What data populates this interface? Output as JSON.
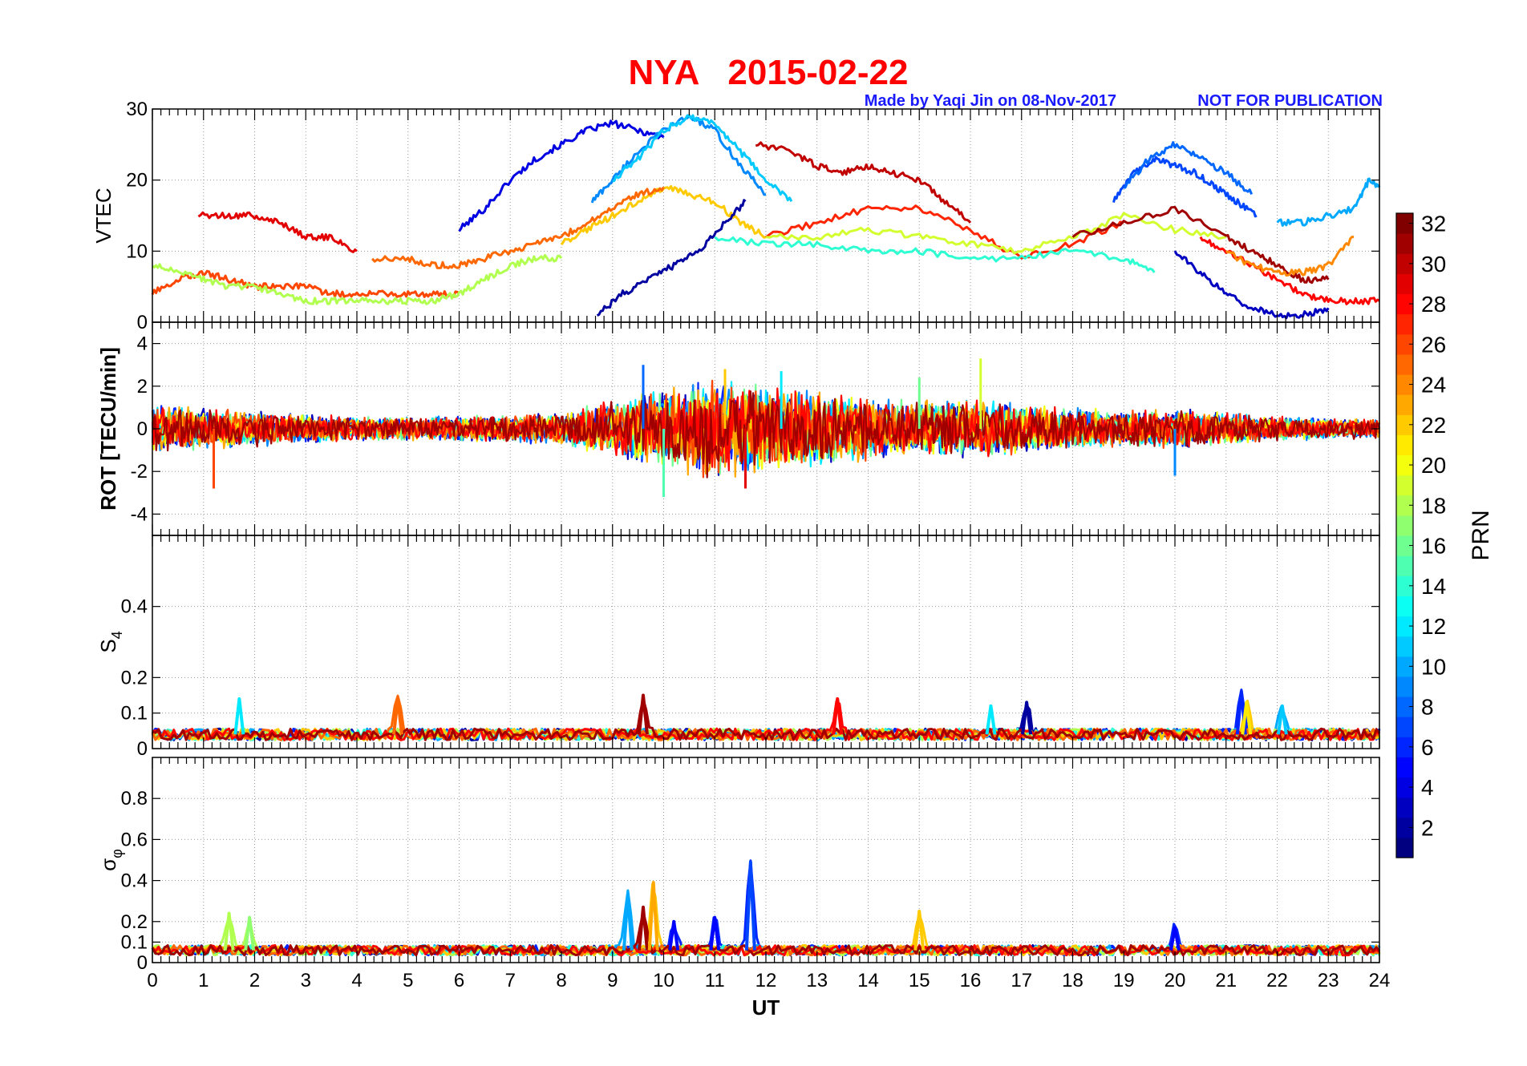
{
  "chart_data": {
    "type": "line",
    "title": "NYA   2015-02-22",
    "credit": "Made by Yaqi Jin on 08-Nov-2017",
    "notice": "NOT FOR PUBLICATION",
    "xlabel": "UT",
    "xlim": [
      0,
      24
    ],
    "xticks": [
      "0",
      "1",
      "2",
      "3",
      "4",
      "5",
      "6",
      "7",
      "8",
      "9",
      "10",
      "11",
      "12",
      "13",
      "14",
      "15",
      "16",
      "17",
      "18",
      "19",
      "20",
      "21",
      "22",
      "23",
      "24"
    ],
    "grid": true,
    "colorbar": {
      "label": "PRN",
      "range": [
        1,
        32
      ],
      "ticks": [
        "2",
        "4",
        "6",
        "8",
        "10",
        "12",
        "14",
        "16",
        "18",
        "20",
        "22",
        "24",
        "26",
        "28",
        "30",
        "32"
      ],
      "colormap": "jet"
    },
    "panels": [
      {
        "id": "vtec",
        "ylabel": "VTEC",
        "ylim": [
          0,
          30
        ],
        "yticks": [
          "0",
          "10",
          "20",
          "30"
        ],
        "series": [
          {
            "prn": 4,
            "x": [
              6.0,
              6.5,
              7.0,
              7.5,
              8.0,
              8.5,
              9.0,
              9.5,
              10.0
            ],
            "y": [
              13,
              16,
              20,
              23,
              25,
              27,
              28,
              27,
              26
            ]
          },
          {
            "prn": 9,
            "x": [
              8.6,
              9.0,
              9.5,
              10.0,
              10.5,
              11.0,
              11.5,
              12.0
            ],
            "y": [
              17,
              20,
              24,
              27,
              29,
              27,
              22,
              18
            ]
          },
          {
            "prn": 11,
            "x": [
              9.0,
              9.5,
              10.0,
              10.5,
              11.0,
              11.5,
              12.0,
              12.5
            ],
            "y": [
              20,
              23,
              27,
              29,
              28,
              24,
              20,
              17
            ]
          },
          {
            "prn": 30,
            "x": [
              11.8,
              12.5,
              13.0,
              13.5,
              14.0,
              14.5,
              15.0,
              15.5,
              16.0
            ],
            "y": [
              25,
              24,
              22,
              21,
              22,
              21,
              20,
              17,
              14
            ]
          },
          {
            "prn": 7,
            "x": [
              18.8,
              19.2,
              19.6,
              20.0,
              20.4,
              20.8,
              21.2,
              21.6
            ],
            "y": [
              17,
              21,
              23,
              22,
              21,
              19,
              17,
              15
            ]
          },
          {
            "prn": 8,
            "x": [
              19.0,
              19.5,
              20.0,
              20.5,
              21.0,
              21.5
            ],
            "y": [
              19,
              23,
              25,
              23,
              21,
              18
            ]
          },
          {
            "prn": 29,
            "x": [
              0.9,
              1.5,
              2.0,
              2.5,
              3.0,
              3.5,
              4.0
            ],
            "y": [
              15,
              15,
              15,
              14,
              12,
              12,
              10
            ]
          },
          {
            "prn": 26,
            "x": [
              0.0,
              0.5,
              1.0,
              1.5,
              2.0,
              2.5,
              3.0,
              3.5,
              4.0,
              4.5,
              5.0,
              5.5,
              6.0
            ],
            "y": [
              4,
              6,
              7,
              6,
              5,
              5,
              5,
              4,
              4,
              4,
              4,
              4,
              4
            ]
          },
          {
            "prn": 18,
            "x": [
              0.0,
              0.5,
              1.0,
              1.5,
              2.0,
              2.5,
              3.0,
              3.5,
              4.0,
              4.5,
              5.0,
              5.5,
              6.0,
              6.5,
              7.0,
              7.5,
              8.0
            ],
            "y": [
              8,
              7,
              6,
              5,
              5,
              4,
              3,
              3,
              3,
              3,
              3,
              3,
              4,
              6,
              8,
              9,
              9
            ]
          },
          {
            "prn": 22,
            "x": [
              8.0,
              8.5,
              9.0,
              9.5,
              10.0,
              10.5,
              11.0,
              11.5,
              12.0
            ],
            "y": [
              11,
              13,
              15,
              17,
              19,
              18,
              17,
              14,
              12
            ]
          },
          {
            "prn": 25,
            "x": [
              4.3,
              5.0,
              5.5,
              6.0,
              6.5,
              7.0,
              7.5,
              8.0,
              8.5,
              9.0,
              9.5,
              10.0
            ],
            "y": [
              9,
              9,
              8,
              8,
              9,
              10,
              11,
              12,
              14,
              16,
              18,
              19
            ]
          },
          {
            "prn": 2,
            "x": [
              8.7,
              9.2,
              9.7,
              10.2,
              10.7,
              11.2,
              11.6
            ],
            "y": [
              1,
              4,
              6,
              8,
              10,
              14,
              17
            ]
          },
          {
            "prn": 27,
            "x": [
              12.0,
              13.0,
              14.0,
              15.0,
              16.0,
              17.0,
              18.0,
              19.0
            ],
            "y": [
              12,
              14,
              16,
              16,
              13,
              9,
              11,
              14
            ]
          },
          {
            "prn": 14,
            "x": [
              11.0,
              12.0,
              13.0,
              14.0,
              15.0,
              16.0,
              17.0,
              18.0,
              19.0,
              19.6
            ],
            "y": [
              12,
              11,
              11,
              10,
              10,
              9,
              9,
              10,
              9,
              7
            ]
          },
          {
            "prn": 19,
            "x": [
              12.0,
              13.0,
              14.0,
              15.0,
              16.0,
              17.0,
              18.0,
              19.0,
              20.0,
              21.0
            ],
            "y": [
              12,
              12,
              13,
              12,
              11,
              10,
              12,
              15,
              13,
              12
            ]
          },
          {
            "prn": 31,
            "x": [
              18.0,
              19.0,
              20.0,
              21.0,
              21.5,
              22.0,
              22.5,
              23.0
            ],
            "y": [
              12,
              14,
              16,
              12,
              10,
              8,
              6,
              6
            ]
          },
          {
            "prn": 28,
            "x": [
              20.5,
              21.0,
              21.5,
              22.0,
              22.5,
              23.0,
              23.5,
              24.0
            ],
            "y": [
              12,
              10,
              8,
              6,
              4,
              3,
              3,
              3
            ]
          },
          {
            "prn": 24,
            "x": [
              21.0,
              21.5,
              22.0,
              22.5,
              23.0,
              23.5
            ],
            "y": [
              10,
              8,
              7,
              7,
              8,
              12
            ]
          },
          {
            "prn": 10,
            "x": [
              22.0,
              22.5,
              23.0,
              23.5,
              23.8,
              24.0
            ],
            "y": [
              14,
              14,
              15,
              16,
              20,
              19
            ]
          },
          {
            "prn": 3,
            "x": [
              20.0,
              20.5,
              21.0,
              21.5,
              22.0,
              22.5,
              23.0
            ],
            "y": [
              10,
              7,
              4,
              2,
              1,
              1,
              2
            ]
          }
        ]
      },
      {
        "id": "rot",
        "ylabel": "ROT [TECU/min]",
        "ylim": [
          -5,
          5
        ],
        "yticks": [
          "-4",
          "-2",
          "0",
          "2",
          "4"
        ],
        "envelope": {
          "x": [
            0,
            1,
            2,
            3,
            4,
            5,
            6,
            7,
            8,
            9,
            10,
            11,
            12,
            13,
            14,
            15,
            16,
            17,
            18,
            19,
            20,
            21,
            22,
            23,
            24
          ],
          "amplitude": [
            1.2,
            1.0,
            0.9,
            0.7,
            0.6,
            0.6,
            0.6,
            0.7,
            0.8,
            1.4,
            2.0,
            2.4,
            2.2,
            1.8,
            1.6,
            1.4,
            1.4,
            1.3,
            1.0,
            0.9,
            1.0,
            0.8,
            0.6,
            0.5,
            0.5
          ]
        },
        "spikes": [
          {
            "x": 9.6,
            "y": 3.0
          },
          {
            "x": 10.0,
            "y": -3.2
          },
          {
            "x": 11.2,
            "y": 2.8
          },
          {
            "x": 11.6,
            "y": -2.8
          },
          {
            "x": 12.3,
            "y": 2.7
          },
          {
            "x": 16.2,
            "y": 3.3
          },
          {
            "x": 1.2,
            "y": -2.8
          },
          {
            "x": 20.0,
            "y": -2.2
          },
          {
            "x": 15.0,
            "y": 2.4
          }
        ]
      },
      {
        "id": "s4",
        "ylabel": "S",
        "ylabel_sub": "4",
        "ylim": [
          0,
          0.6
        ],
        "yticks": [
          "0",
          "0.1",
          "0.2",
          "0.4"
        ],
        "baseline": 0.04,
        "peaks": [
          {
            "x": 1.7,
            "y": 0.14,
            "prn": 12
          },
          {
            "x": 4.8,
            "y": 0.14,
            "prn": 25
          },
          {
            "x": 9.6,
            "y": 0.15,
            "prn": 31
          },
          {
            "x": 13.4,
            "y": 0.14,
            "prn": 28
          },
          {
            "x": 16.4,
            "y": 0.12,
            "prn": 12
          },
          {
            "x": 17.1,
            "y": 0.13,
            "prn": 2
          },
          {
            "x": 21.3,
            "y": 0.16,
            "prn": 6
          },
          {
            "x": 22.1,
            "y": 0.12,
            "prn": 11
          },
          {
            "x": 21.4,
            "y": 0.13,
            "prn": 21
          }
        ]
      },
      {
        "id": "sigphi",
        "ylabel": "σ",
        "ylabel_sub": "φ",
        "ylim": [
          0,
          1.0
        ],
        "yticks": [
          "0",
          "0.1",
          "0.2",
          "0.4",
          "0.6",
          "0.8"
        ],
        "baseline": 0.06,
        "peaks": [
          {
            "x": 1.5,
            "y": 0.24,
            "prn": 18
          },
          {
            "x": 1.9,
            "y": 0.22,
            "prn": 17
          },
          {
            "x": 9.3,
            "y": 0.33,
            "prn": 10
          },
          {
            "x": 9.6,
            "y": 0.27,
            "prn": 31
          },
          {
            "x": 9.8,
            "y": 0.39,
            "prn": 23
          },
          {
            "x": 10.2,
            "y": 0.2,
            "prn": 5
          },
          {
            "x": 11.0,
            "y": 0.22,
            "prn": 5
          },
          {
            "x": 11.7,
            "y": 0.49,
            "prn": 7
          },
          {
            "x": 15.0,
            "y": 0.25,
            "prn": 22
          },
          {
            "x": 20.0,
            "y": 0.17,
            "prn": 5
          }
        ]
      }
    ]
  }
}
